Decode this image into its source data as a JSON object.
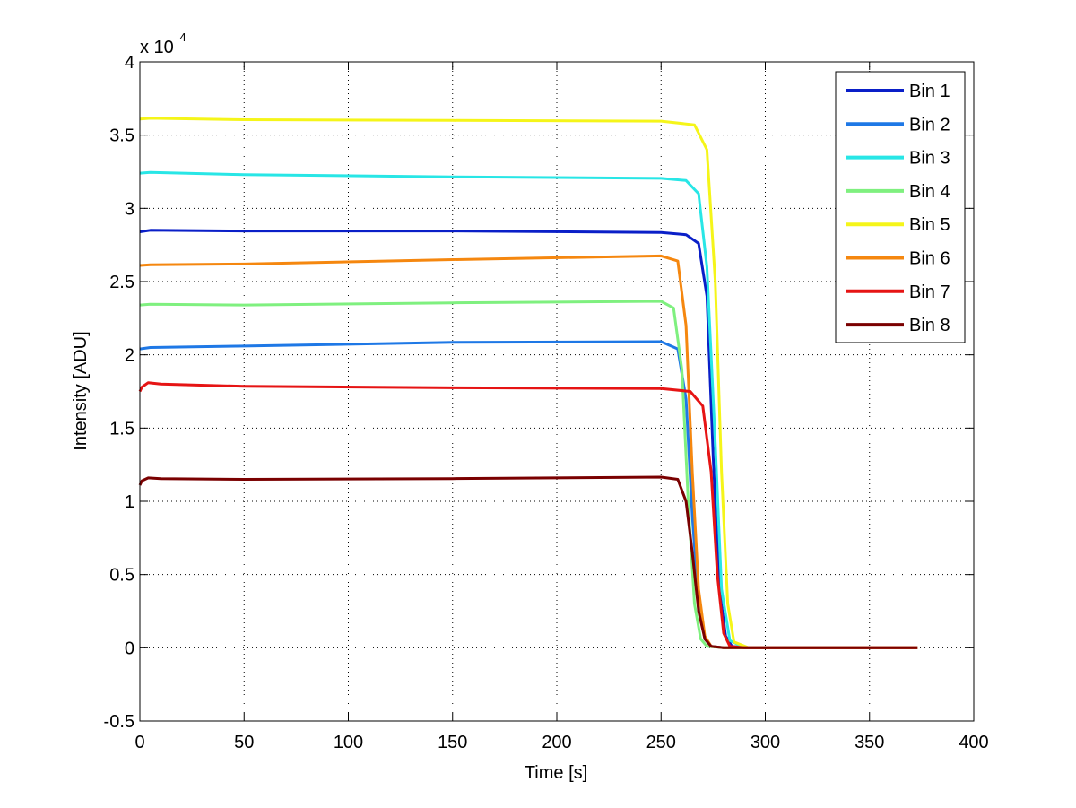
{
  "chart_data": {
    "type": "line",
    "title": "",
    "xlabel": "Time [s]",
    "ylabel": "Intensity [ADU]",
    "xlim": [
      0,
      400
    ],
    "ylim": [
      -5000,
      40000
    ],
    "xticks": [
      0,
      50,
      100,
      150,
      200,
      250,
      300,
      350,
      400
    ],
    "xtick_labels": [
      "0",
      "50",
      "100",
      "150",
      "200",
      "250",
      "300",
      "350",
      "400"
    ],
    "yticks": [
      -5000,
      0,
      5000,
      10000,
      15000,
      20000,
      25000,
      30000,
      35000,
      40000
    ],
    "ytick_labels": [
      "-0.5",
      "0",
      "0.5",
      "1",
      "1.5",
      "2",
      "2.5",
      "3",
      "3.5",
      "4"
    ],
    "y_multiplier_base": "x 10",
    "y_multiplier_exp": "4",
    "grid": true,
    "legend_position": "top-right",
    "series": [
      {
        "name": "Bin 1",
        "color": "#0a1fc8",
        "x": [
          0,
          5,
          50,
          150,
          250,
          262,
          268,
          272,
          275,
          278,
          281,
          284,
          290,
          373
        ],
        "y": [
          28400,
          28500,
          28450,
          28450,
          28350,
          28200,
          27600,
          24000,
          13000,
          4000,
          800,
          100,
          0,
          0
        ]
      },
      {
        "name": "Bin 2",
        "color": "#1e78e6",
        "x": [
          0,
          5,
          50,
          150,
          250,
          258,
          262,
          265,
          268,
          271,
          274,
          280,
          373
        ],
        "y": [
          20400,
          20500,
          20600,
          20850,
          20900,
          20400,
          17000,
          9000,
          3000,
          600,
          100,
          0,
          0
        ]
      },
      {
        "name": "Bin 3",
        "color": "#28e6e6",
        "x": [
          0,
          5,
          50,
          150,
          250,
          262,
          268,
          272,
          276,
          279,
          283,
          290,
          373
        ],
        "y": [
          32400,
          32450,
          32300,
          32150,
          32050,
          31900,
          31000,
          26000,
          14000,
          4000,
          500,
          0,
          0
        ]
      },
      {
        "name": "Bin 4",
        "color": "#7ff07f",
        "x": [
          0,
          5,
          50,
          150,
          250,
          256,
          260,
          263,
          266,
          269,
          272,
          280,
          373
        ],
        "y": [
          23400,
          23450,
          23400,
          23550,
          23650,
          23200,
          19000,
          10000,
          3000,
          600,
          100,
          0,
          0
        ]
      },
      {
        "name": "Bin 5",
        "color": "#f5f519",
        "x": [
          0,
          5,
          50,
          150,
          250,
          266,
          272,
          276,
          279,
          282,
          285,
          292,
          373
        ],
        "y": [
          36100,
          36150,
          36050,
          36000,
          35950,
          35700,
          34000,
          25000,
          12000,
          3000,
          400,
          0,
          0
        ]
      },
      {
        "name": "Bin 6",
        "color": "#f5870f",
        "x": [
          0,
          5,
          50,
          150,
          250,
          258,
          262,
          265,
          268,
          271,
          274,
          280,
          373
        ],
        "y": [
          26100,
          26150,
          26200,
          26500,
          26750,
          26400,
          22000,
          12000,
          4000,
          800,
          100,
          0,
          0
        ]
      },
      {
        "name": "Bin 7",
        "color": "#e61414",
        "x": [
          0,
          1,
          4,
          10,
          50,
          150,
          250,
          264,
          270,
          274,
          277,
          280,
          283,
          290,
          373
        ],
        "y": [
          17500,
          17800,
          18100,
          18000,
          17850,
          17750,
          17700,
          17500,
          16500,
          12000,
          5000,
          1000,
          100,
          0,
          0
        ]
      },
      {
        "name": "Bin 8",
        "color": "#7a0000",
        "x": [
          0,
          1,
          4,
          10,
          50,
          150,
          250,
          258,
          262,
          265,
          268,
          271,
          274,
          280,
          373
        ],
        "y": [
          11100,
          11400,
          11600,
          11550,
          11500,
          11550,
          11650,
          11500,
          10000,
          6500,
          2500,
          600,
          100,
          0,
          0
        ]
      }
    ]
  }
}
